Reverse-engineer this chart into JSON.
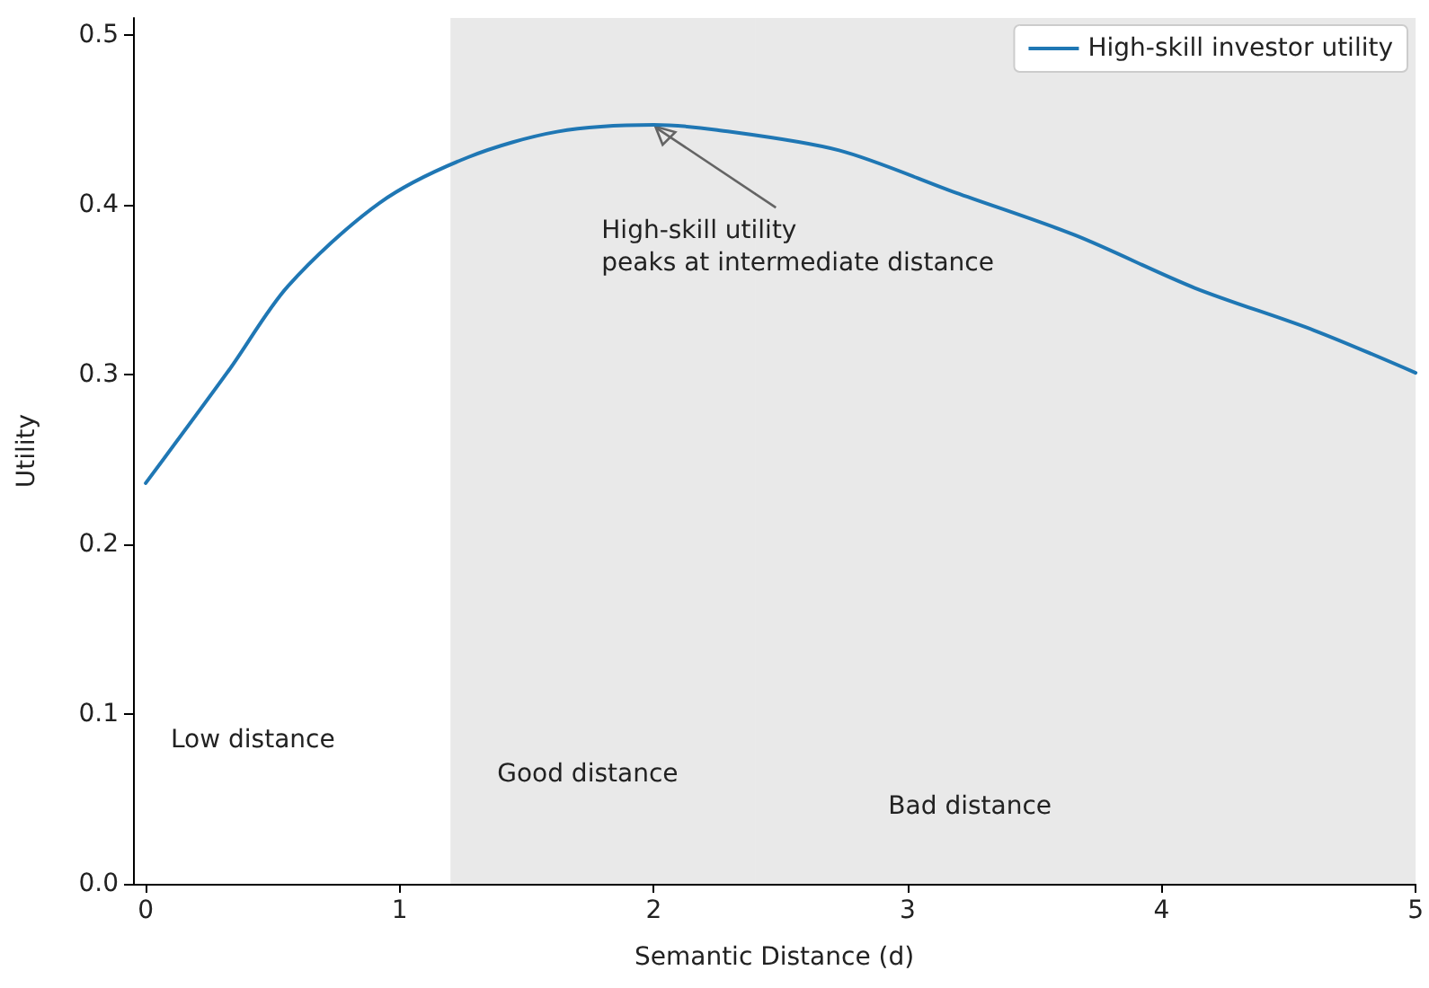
{
  "chart_data": {
    "type": "line",
    "xlabel": "Semantic Distance (d)",
    "ylabel": "Utility",
    "series": [
      {
        "name": "High-skill investor utility",
        "color": "#1f77b4",
        "x": [
          0,
          0.33,
          0.56,
          0.92,
          1.27,
          1.62,
          2.0,
          2.25,
          2.73,
          3.19,
          3.66,
          4.13,
          4.6,
          5.0
        ],
        "values": [
          0.236,
          0.303,
          0.352,
          0.401,
          0.428,
          0.443,
          0.447,
          0.444,
          0.432,
          0.407,
          0.382,
          0.351,
          0.326,
          0.301
        ]
      }
    ],
    "xlim": [
      -0.05,
      5
    ],
    "xticks": [
      0,
      1,
      2,
      3,
      4,
      5
    ],
    "ylim": [
      0,
      0.51
    ],
    "yticks": [
      {
        "value": 0,
        "label": "0.0"
      },
      0.1,
      0.2,
      0.3,
      0.4,
      0.5
    ],
    "bands": [
      {
        "axis": "x",
        "from": 1.2,
        "to": 2.4,
        "color": "#c8c8c8",
        "label": "Good distance"
      },
      {
        "axis": "x",
        "from": 2.4,
        "to": 5,
        "color": "#c8c8c8",
        "label": "Bad distance"
      }
    ],
    "annotations": [
      {
        "text": "High-skill utility\npeaks at intermediate distance",
        "x": 2,
        "y": 0.447
      },
      "Low distance"
    ],
    "grid": false,
    "legend": "top right",
    "marker": "none",
    "line_style": "solid"
  }
}
